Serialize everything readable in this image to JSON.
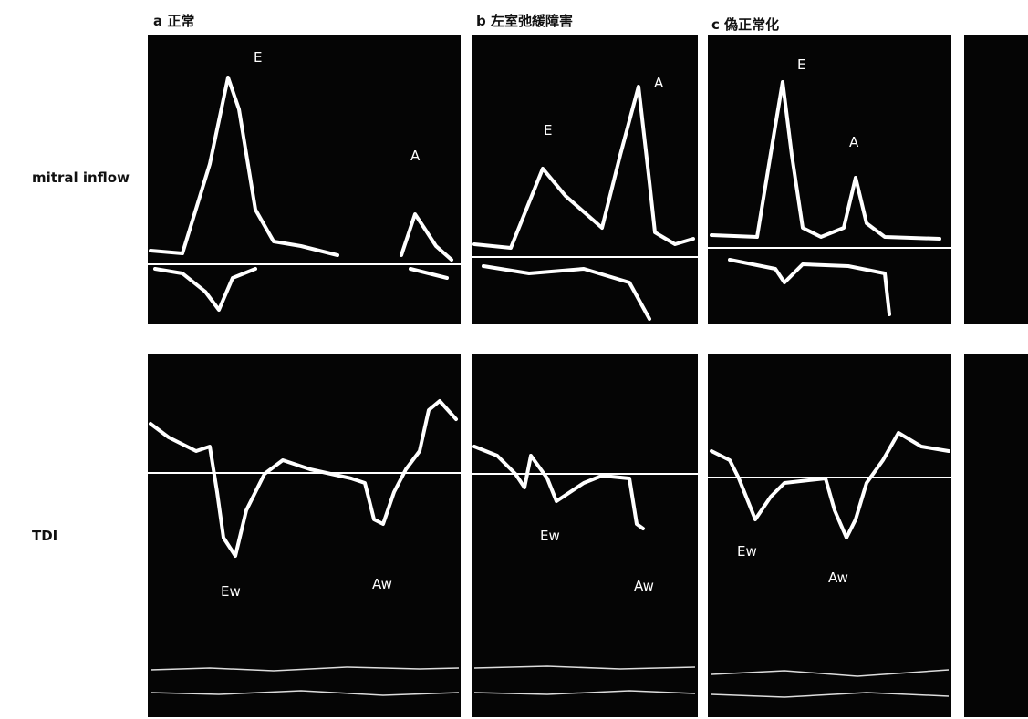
{
  "row_labels": [
    "mitral inflow",
    "TDI"
  ],
  "panels": [
    {
      "title": "a 正常",
      "inflow_labels": [
        "E",
        "A"
      ],
      "tdi_labels": [
        "Ew",
        "Aw"
      ]
    },
    {
      "title": "b 左室弛緩障害",
      "inflow_labels": [
        "E",
        "A"
      ],
      "tdi_labels": [
        "Ew",
        "Aw"
      ]
    },
    {
      "title": "c 偽正常化",
      "inflow_labels": [
        "E",
        "A"
      ],
      "tdi_labels": [
        "Ew",
        "Aw"
      ]
    }
  ]
}
